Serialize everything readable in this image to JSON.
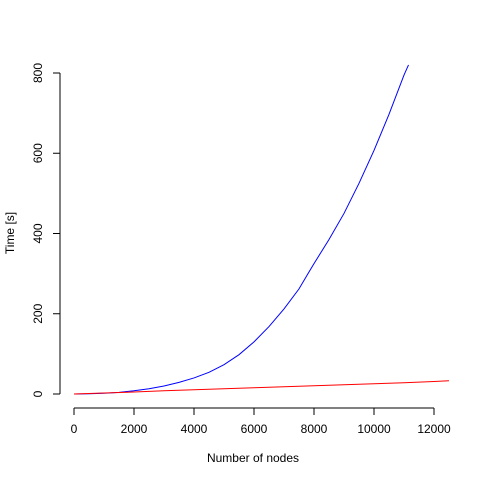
{
  "chart_data": {
    "type": "line",
    "xlabel": "Number of nodes",
    "ylabel": "Time [s]",
    "xlim": [
      0,
      12500
    ],
    "ylim": [
      0,
      820
    ],
    "xticks": [
      0,
      2000,
      4000,
      6000,
      8000,
      10000,
      12000
    ],
    "yticks": [
      0,
      200,
      400,
      600,
      800
    ],
    "grid": false,
    "legend": "none",
    "series": [
      {
        "color": "#0000ff",
        "x": [
          0,
          500,
          1000,
          1500,
          2000,
          2500,
          3000,
          3500,
          4000,
          4500,
          5000,
          5500,
          6000,
          6500,
          7000,
          7500,
          7800,
          8000,
          8500,
          9000,
          9500,
          10000,
          10500,
          11000,
          11150
        ],
        "y": [
          0,
          0.5,
          2,
          4,
          8,
          13,
          20,
          29,
          40,
          54,
          73,
          98,
          130,
          168,
          212,
          262,
          300,
          325,
          385,
          450,
          525,
          607,
          697,
          795,
          820
        ]
      },
      {
        "color": "#ff0000",
        "x": [
          0,
          1000,
          2000,
          3000,
          4000,
          5000,
          6000,
          7000,
          8000,
          9000,
          10000,
          11000,
          12000,
          12500
        ],
        "y": [
          0,
          2.5,
          5,
          8,
          10.5,
          13,
          15.5,
          18,
          20.5,
          23,
          25.5,
          28,
          31,
          33
        ]
      }
    ]
  }
}
